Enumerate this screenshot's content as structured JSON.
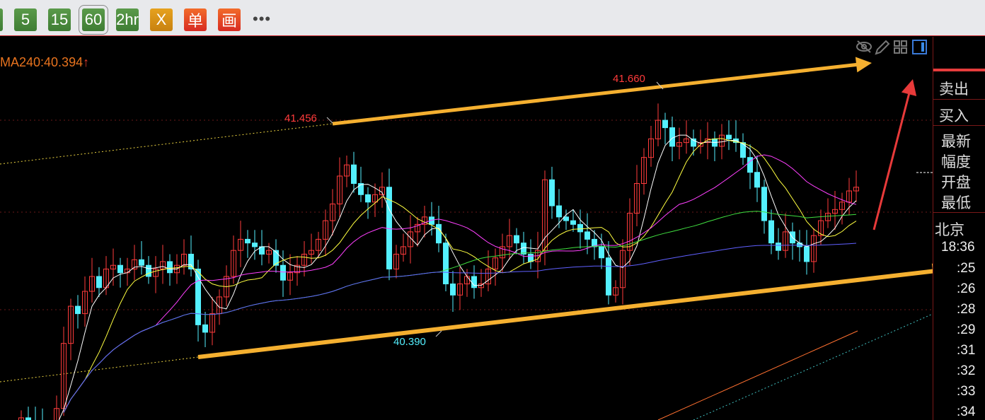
{
  "toolbar": {
    "buttons": [
      {
        "label": "5"
      },
      {
        "label": "15"
      },
      {
        "label": "60",
        "selected": true
      },
      {
        "label": "2hr"
      },
      {
        "label": "X"
      },
      {
        "label": "单"
      },
      {
        "label": "画"
      }
    ],
    "more": "•••"
  },
  "ma_label": {
    "text": "MA240:40.394",
    "arrow": "↑"
  },
  "chart_tools": [
    "eye-slash-icon",
    "pencil-icon",
    "grid-icon",
    "panel-toggle-icon"
  ],
  "annotations": {
    "high1": "41.456",
    "high2": "41.660",
    "low1": "40.390"
  },
  "panel": {
    "sell": "卖出",
    "buy": "买入",
    "latest": "最新",
    "range": "幅度",
    "open": "开盘",
    "low": "最低",
    "city": "北京",
    "time": "18:36",
    "ticks": [
      ":25",
      ":26",
      ":28",
      ":29",
      ":31",
      ":32",
      ":33",
      ":34"
    ]
  },
  "colors": {
    "up": "#ff3b3b",
    "down": "#54f0ff",
    "ma5": "#ffffff",
    "ma10": "#ffff40",
    "ma20": "#ff40ff",
    "ma60": "#40e040",
    "ma120": "#6060ff",
    "arrow": "#f5b030"
  },
  "chart_data": {
    "type": "candlestick",
    "interval": "60",
    "close": [
      39.9,
      39.88,
      39.85,
      39.8,
      39.82,
      39.95,
      40.3,
      40.5,
      40.46,
      40.58,
      40.66,
      40.6,
      40.7,
      40.72,
      40.68,
      40.7,
      40.75,
      40.72,
      40.66,
      40.7,
      40.74,
      40.68,
      40.72,
      40.78,
      40.7,
      40.4,
      40.36,
      40.46,
      40.55,
      40.66,
      40.8,
      40.86,
      40.84,
      40.82,
      40.78,
      40.8,
      40.72,
      40.64,
      40.68,
      40.72,
      40.78,
      40.8,
      40.86,
      40.96,
      41.05,
      41.2,
      41.26,
      41.16,
      41.1,
      41.06,
      41.1,
      41.14,
      40.7,
      40.78,
      40.82,
      40.9,
      40.94,
      40.98,
      40.94,
      40.84,
      40.62,
      40.56,
      40.62,
      40.66,
      40.6,
      40.62,
      40.7,
      40.76,
      40.82,
      40.88,
      40.84,
      40.78,
      40.74,
      40.8,
      41.18,
      41.04,
      40.98,
      40.96,
      40.94,
      40.9,
      40.86,
      40.82,
      40.76,
      40.56,
      40.6,
      40.8,
      41.0,
      41.16,
      41.3,
      41.4,
      41.5,
      41.46,
      41.36,
      41.38,
      41.4,
      41.36,
      41.38,
      41.4,
      41.36,
      41.42,
      41.4,
      41.38,
      41.3,
      41.22,
      41.14,
      40.96,
      40.84,
      40.8,
      40.9,
      40.84,
      40.82,
      40.74,
      40.88,
      40.96,
      41.0,
      41.02,
      41.06,
      41.12,
      41.14
    ],
    "labeled_high": [
      41.456,
      41.66
    ],
    "labeled_low": [
      40.39
    ]
  }
}
